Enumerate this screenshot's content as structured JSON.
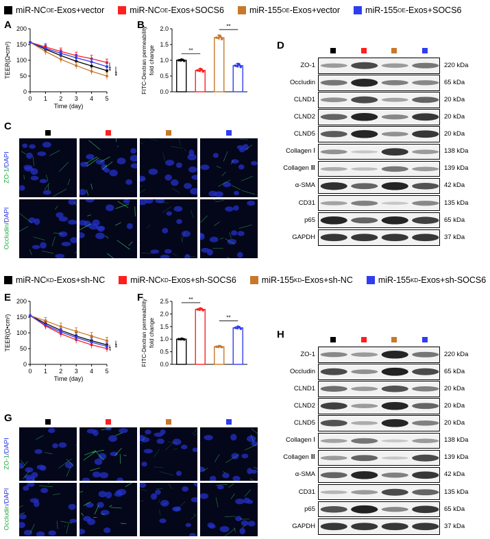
{
  "legend_top": [
    {
      "label": "miR-NC",
      "sup": "OE",
      "rest": "-Exos+vector",
      "color": "#000000"
    },
    {
      "label": "miR-NC",
      "sup": "OE",
      "rest": "-Exos+SOCS6",
      "color": "#ff1f1f"
    },
    {
      "label": "miR-155",
      "sup": "OE",
      "rest": "-Exos+vector",
      "color": "#c8782a"
    },
    {
      "label": "miR-155",
      "sup": "OE",
      "rest": "-Exos+SOCS6",
      "color": "#2f3cf0"
    }
  ],
  "legend_bottom": [
    {
      "label": "miR-NC",
      "sup": "KD",
      "rest": "-Exos+sh-NC",
      "color": "#000000"
    },
    {
      "label": "miR-NC",
      "sup": "KD",
      "rest": "-Exos+sh-SOCS6",
      "color": "#ff1f1f"
    },
    {
      "label": "miR-155",
      "sup": "KD",
      "rest": "-Exos+sh-NC",
      "color": "#c8782a"
    },
    {
      "label": "miR-155",
      "sup": "KD",
      "rest": "-Exos+sh-SOCS6",
      "color": "#2f3cf0"
    }
  ],
  "panels": {
    "A": "A",
    "B": "B",
    "C": "C",
    "D": "D",
    "E": "E",
    "F": "F",
    "G": "G",
    "H": "H"
  },
  "teer_ylabel": "TEER(Ω•cm²)",
  "teer_xlabel": "Time  (day)",
  "fitc_ylabel1": "FITC-Dextran permeability",
  "fitc_ylabel2": "fold change",
  "sig": "**",
  "micro_labels_top": {
    "row1": "ZO-1",
    "row2": "Occludin",
    "dapi": "/DAPI"
  },
  "blot_proteins": [
    "ZO-1",
    "Occludin",
    "CLND1",
    "CLND2",
    "CLND5",
    "Collagen Ⅰ",
    "Collagen Ⅲ",
    "α-SMA",
    "CD31",
    "p65",
    "GAPDH"
  ],
  "blot_kda": [
    "220 kDa",
    "65 kDa",
    "20 kDa",
    "20 kDa",
    "20 kDa",
    "138 kDa",
    "139 kDa",
    "42 kDa",
    "135 kDa",
    "65 kDa",
    "37 kDa"
  ],
  "chart_data": [
    {
      "type": "line",
      "panel": "A",
      "x": [
        0,
        1,
        2,
        3,
        4,
        5
      ],
      "series": [
        {
          "name": "miR-NC OE-Exos+vector",
          "color": "#000000",
          "values": [
            157,
            135,
            115,
            97,
            82,
            67
          ]
        },
        {
          "name": "miR-NC OE-Exos+SOCS6",
          "color": "#ff1f1f",
          "values": [
            157,
            142,
            128,
            115,
            105,
            93
          ]
        },
        {
          "name": "miR-155 OE-Exos+vector",
          "color": "#c8782a",
          "values": [
            157,
            128,
            103,
            83,
            65,
            50
          ]
        },
        {
          "name": "miR-155 OE-Exos+SOCS6",
          "color": "#2f3cf0",
          "values": [
            157,
            138,
            122,
            108,
            95,
            80
          ]
        }
      ],
      "xlim": [
        0,
        5
      ],
      "ylim": [
        0,
        200
      ],
      "yticks": [
        0,
        50,
        100,
        150,
        200
      ],
      "xticks": [
        0,
        1,
        2,
        3,
        4,
        5
      ]
    },
    {
      "type": "bar",
      "panel": "B",
      "categories": [
        "miR-NC OE-Exos+vector",
        "miR-NC OE-Exos+SOCS6",
        "miR-155 OE-Exos+vector",
        "miR-155 OE-Exos+SOCS6"
      ],
      "values": [
        1.0,
        0.68,
        1.72,
        0.83
      ],
      "errors": [
        0.03,
        0.06,
        0.08,
        0.07
      ],
      "colors": [
        "#000000",
        "#ff1f1f",
        "#c8782a",
        "#2f3cf0"
      ],
      "ylim": [
        0,
        2.0
      ],
      "yticks": [
        0.0,
        0.5,
        1.0,
        1.5,
        2.0
      ]
    },
    {
      "type": "line",
      "panel": "E",
      "x": [
        0,
        1,
        2,
        3,
        4,
        5
      ],
      "series": [
        {
          "name": "miR-NC KD-Exos+sh-NC",
          "color": "#000000",
          "values": [
            155,
            130,
            108,
            90,
            75,
            62
          ]
        },
        {
          "name": "miR-NC KD-Exos+sh-SOCS6",
          "color": "#ff1f1f",
          "values": [
            155,
            122,
            97,
            78,
            62,
            50
          ]
        },
        {
          "name": "miR-155 KD-Exos+sh-NC",
          "color": "#c8782a",
          "values": [
            155,
            138,
            120,
            105,
            90,
            75
          ]
        },
        {
          "name": "miR-155 KD-Exos+sh-SOCS6",
          "color": "#2f3cf0",
          "values": [
            155,
            125,
            103,
            85,
            70,
            57
          ]
        }
      ],
      "xlim": [
        0,
        5
      ],
      "ylim": [
        0,
        200
      ],
      "yticks": [
        0,
        50,
        100,
        150,
        200
      ],
      "xticks": [
        0,
        1,
        2,
        3,
        4,
        5
      ]
    },
    {
      "type": "bar",
      "panel": "F",
      "categories": [
        "miR-NC KD-Exos+sh-NC",
        "miR-NC KD-Exos+sh-SOCS6",
        "miR-155 KD-Exos+sh-NC",
        "miR-155 KD-Exos+sh-SOCS6"
      ],
      "values": [
        1.0,
        2.18,
        0.7,
        1.45
      ],
      "errors": [
        0.02,
        0.05,
        0.03,
        0.06
      ],
      "colors": [
        "#000000",
        "#ff1f1f",
        "#c8782a",
        "#2f3cf0"
      ],
      "ylim": [
        0,
        2.5
      ],
      "yticks": [
        0.0,
        0.5,
        1.0,
        1.5,
        2.0,
        2.5
      ]
    }
  ],
  "blots": {
    "D": [
      [
        0.3,
        0.75,
        0.3,
        0.5
      ],
      [
        0.5,
        0.95,
        0.45,
        0.4
      ],
      [
        0.35,
        0.75,
        0.25,
        0.6
      ],
      [
        0.6,
        0.95,
        0.4,
        0.85
      ],
      [
        0.65,
        0.95,
        0.35,
        0.85
      ],
      [
        0.35,
        0.05,
        0.85,
        0.3
      ],
      [
        0.2,
        0.1,
        0.5,
        0.3
      ],
      [
        0.9,
        0.6,
        0.95,
        0.7
      ],
      [
        0.25,
        0.45,
        0.05,
        0.4
      ],
      [
        0.95,
        0.6,
        0.95,
        0.8
      ],
      [
        0.85,
        0.85,
        0.85,
        0.85
      ]
    ],
    "H": [
      [
        0.4,
        0.3,
        0.95,
        0.5
      ],
      [
        0.75,
        0.35,
        0.98,
        0.75
      ],
      [
        0.55,
        0.3,
        0.7,
        0.45
      ],
      [
        0.8,
        0.3,
        0.95,
        0.6
      ],
      [
        0.7,
        0.2,
        0.95,
        0.45
      ],
      [
        0.25,
        0.5,
        0.05,
        0.3
      ],
      [
        0.3,
        0.6,
        0.05,
        0.75
      ],
      [
        0.6,
        0.95,
        0.45,
        0.85
      ],
      [
        0.15,
        0.3,
        0.75,
        0.6
      ],
      [
        0.7,
        0.98,
        0.4,
        0.85
      ],
      [
        0.85,
        0.85,
        0.85,
        0.85
      ]
    ]
  }
}
